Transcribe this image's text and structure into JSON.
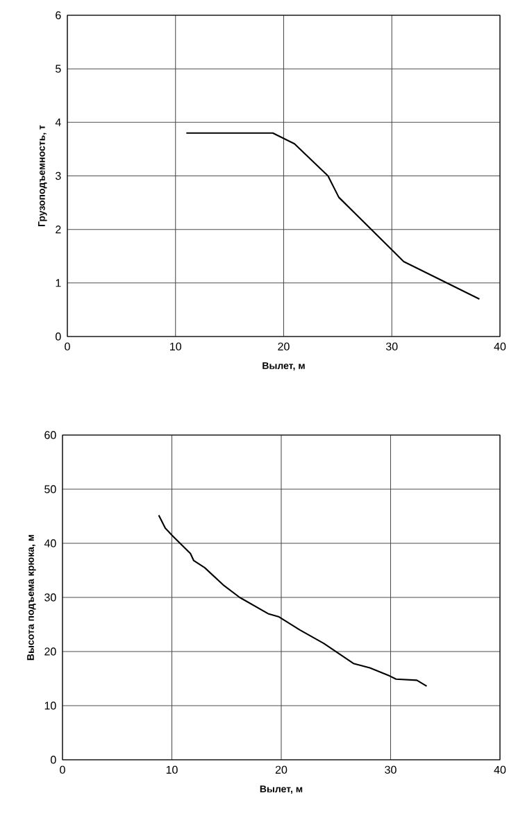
{
  "chart_data": [
    {
      "type": "line",
      "xlabel": "Вылет, м",
      "ylabel": "Грузоподъемность, т",
      "color": "#000000",
      "grid": true,
      "x": [
        11.0,
        19.0,
        21.0,
        24.1,
        25.1,
        30.1,
        31.1,
        38.1
      ],
      "values": [
        3.8,
        3.8,
        3.6,
        3.0,
        2.6,
        1.6,
        1.4,
        0.7
      ],
      "xlim": [
        0,
        40
      ],
      "ylim": [
        0,
        6
      ],
      "xticks": [
        0,
        10,
        20,
        30,
        40
      ],
      "yticks": [
        0,
        1,
        2,
        3,
        4,
        5,
        6
      ]
    },
    {
      "type": "line",
      "xlabel": "Вылет, м",
      "ylabel": "Высота подъема крюка, м",
      "color": "#000000",
      "grid": true,
      "x": [
        8.8,
        9.4,
        10.0,
        11.7,
        12.0,
        13.0,
        14.7,
        16.2,
        18.8,
        19.8,
        21.7,
        23.9,
        26.6,
        28.1,
        29.9,
        30.5,
        32.4,
        33.3
      ],
      "values": [
        45.2,
        42.8,
        41.5,
        38.1,
        36.8,
        35.5,
        32.3,
        30.0,
        27.0,
        26.4,
        24.0,
        21.5,
        17.8,
        17.0,
        15.5,
        14.9,
        14.7,
        13.6
      ],
      "xlim": [
        0,
        40
      ],
      "ylim": [
        0,
        60
      ],
      "xticks": [
        0,
        10,
        20,
        30,
        40
      ],
      "yticks": [
        0,
        10,
        20,
        30,
        40,
        50,
        60
      ]
    }
  ]
}
